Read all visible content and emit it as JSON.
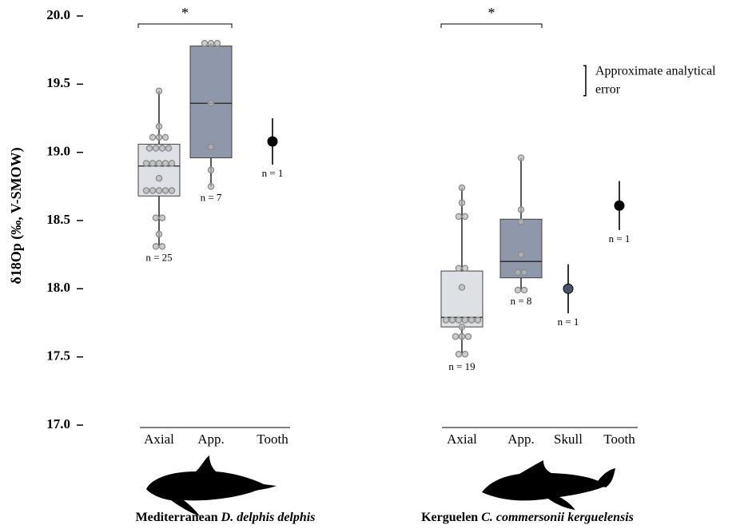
{
  "chart_data": [
    {
      "type": "box",
      "ylabel": "δ18Op (‰, V-SMOW)",
      "title_parts": [
        "Mediterranean ",
        "D. delphis delphis"
      ],
      "categories": [
        "Axial",
        "App.",
        "Tooth"
      ],
      "ylim": [
        17.0,
        20.0
      ],
      "yticks": [
        {
          "value": 17.0,
          "label": "17.0"
        },
        {
          "value": 17.5,
          "label": "17.5"
        },
        {
          "value": 18.0,
          "label": "18.0"
        },
        {
          "value": 18.5,
          "label": "18.5"
        },
        {
          "value": 19.0,
          "label": "19.0"
        },
        {
          "value": 19.5,
          "label": "19.5"
        },
        {
          "value": 20.0,
          "label": "20.0"
        }
      ],
      "groups": [
        {
          "box": {
            "whislo": 18.31,
            "q1": 18.68,
            "median": 18.9,
            "q3": 19.06,
            "whishi": 19.45
          },
          "color": "#dde1e5",
          "points": [
            19.45,
            19.19,
            19.11,
            19.11,
            19.11,
            19.03,
            19.03,
            19.03,
            19.03,
            18.92,
            18.92,
            18.92,
            18.92,
            18.92,
            18.81,
            18.72,
            18.72,
            18.72,
            18.72,
            18.72,
            18.52,
            18.52,
            18.4,
            18.31,
            18.31
          ],
          "n_label": "n = 25"
        },
        {
          "box": {
            "whislo": 18.75,
            "q1": 18.96,
            "median": 19.36,
            "q3": 19.78,
            "whishi": 19.8
          },
          "color": "#8e98aa",
          "points": [
            19.8,
            19.8,
            19.8,
            19.36,
            19.04,
            18.87,
            18.75
          ],
          "n_label": "n = 7"
        },
        {
          "mean": 19.08,
          "error": 0.17,
          "color": "#000000",
          "n_label": "n = 1"
        }
      ],
      "significance": [
        {
          "label": "*"
        }
      ]
    },
    {
      "type": "box",
      "title_parts": [
        "Kerguelen ",
        "C. commersonii kerguelensis"
      ],
      "categories": [
        "Axial",
        "App.",
        "Skull",
        "Tooth"
      ],
      "ylim": [
        17.0,
        20.0
      ],
      "groups": [
        {
          "box": {
            "whislo": 17.51,
            "q1": 17.72,
            "median": 17.79,
            "q3": 18.13,
            "whishi": 18.74
          },
          "color": "#dde1e5",
          "points": [
            18.74,
            18.63,
            18.53,
            18.53,
            18.15,
            18.15,
            18.01,
            17.77,
            17.77,
            17.77,
            17.77,
            17.77,
            17.77,
            17.72,
            17.65,
            17.65,
            17.65,
            17.52,
            17.52
          ],
          "n_label": "n = 19"
        },
        {
          "box": {
            "whislo": 17.99,
            "q1": 18.08,
            "median": 18.2,
            "q3": 18.51,
            "whishi": 18.96
          },
          "color": "#8e98aa",
          "points": [
            18.96,
            18.58,
            18.49,
            18.25,
            18.12,
            18.12,
            17.99,
            17.99
          ],
          "n_label": "n = 8"
        },
        {
          "mean": 18.0,
          "error": 0.18,
          "color": "#4a5468",
          "n_label": "n = 1"
        },
        {
          "mean": 18.61,
          "error": 0.18,
          "color": "#000000",
          "n_label": "n = 1"
        }
      ],
      "significance": [
        {
          "label": "*"
        }
      ],
      "error_note": {
        "lines": [
          "Approximate analytical",
          "error"
        ],
        "error": 0.11
      }
    }
  ]
}
